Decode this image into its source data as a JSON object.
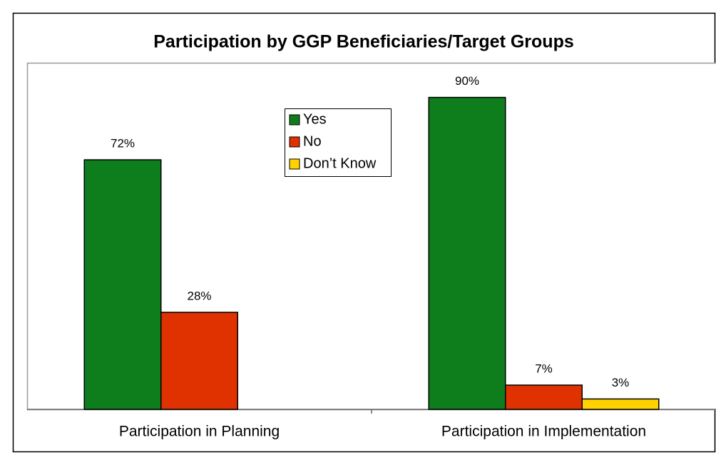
{
  "chart_data": {
    "type": "bar",
    "title": "Participation by GGP Beneficiaries/Target Groups",
    "categories": [
      "Participation in Planning",
      "Participation in Implementation"
    ],
    "series": [
      {
        "name": "Yes",
        "color": "#0e7d1c",
        "values": [
          72,
          90
        ],
        "value_labels": [
          "72%",
          "90%"
        ]
      },
      {
        "name": "No",
        "color": "#e03200",
        "values": [
          28,
          7
        ],
        "value_labels": [
          "28%",
          "7%"
        ]
      },
      {
        "name": "Don’t Know",
        "color": "#ffd200",
        "values": [
          null,
          3
        ],
        "value_labels": [
          null,
          "3%"
        ]
      }
    ],
    "ylim": [
      0,
      100
    ],
    "legend": "top-center"
  }
}
